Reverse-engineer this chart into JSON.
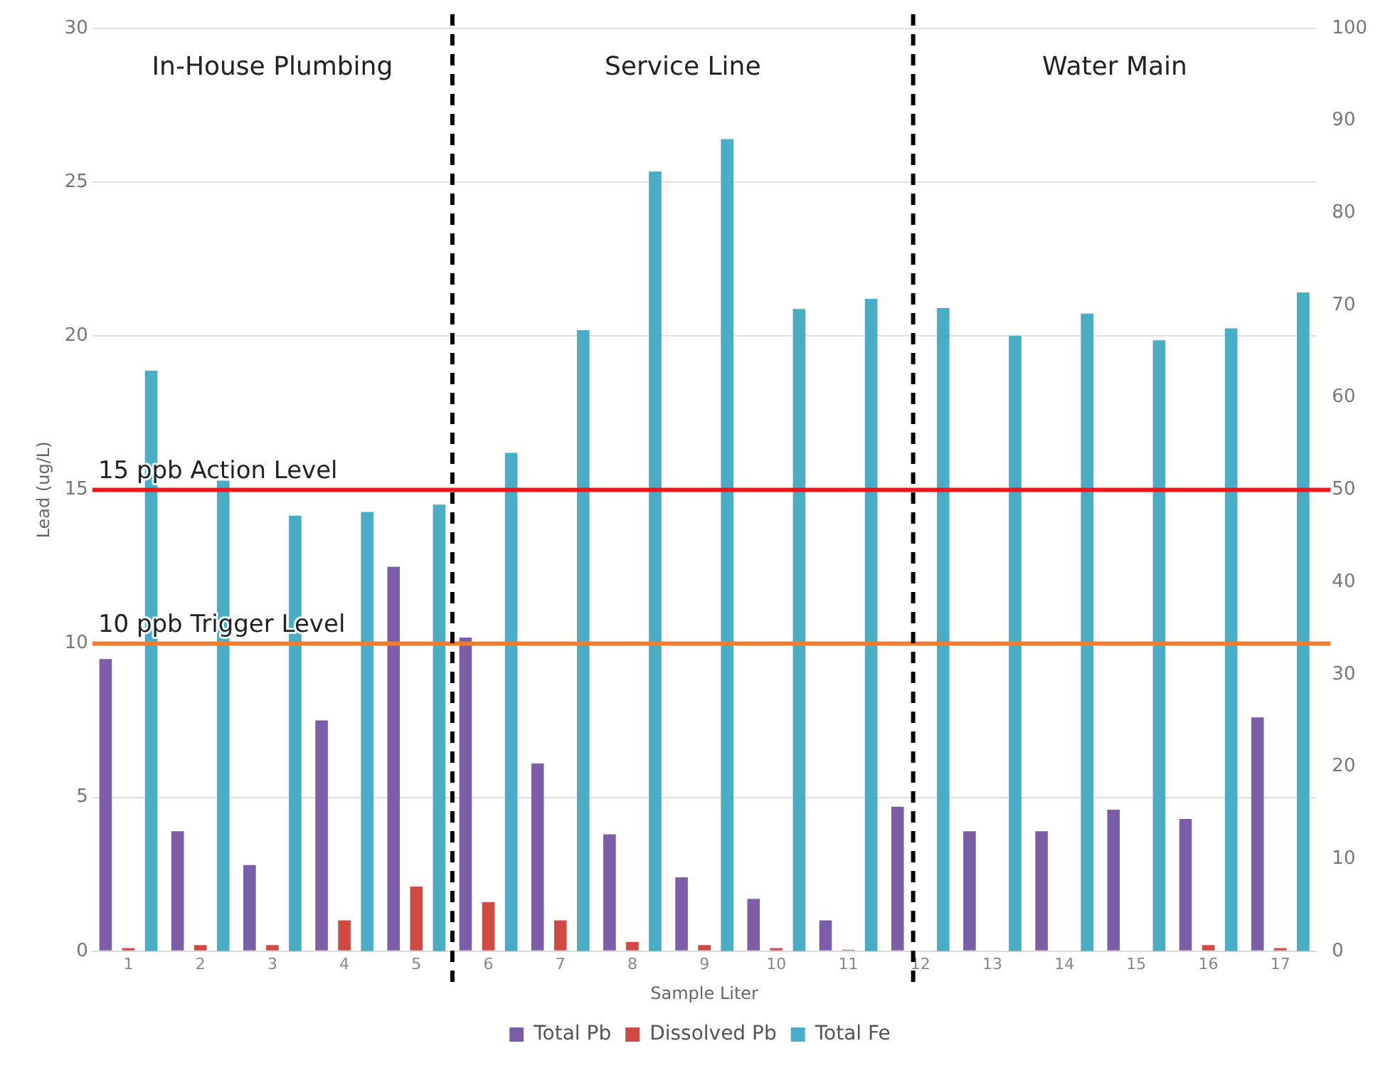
{
  "chart_data": {
    "type": "bar",
    "xlabel": "Sample Liter",
    "ylabel": "Lead (ug/L)",
    "x": [
      1,
      2,
      3,
      4,
      5,
      6,
      7,
      8,
      9,
      10,
      11,
      12,
      13,
      14,
      15,
      16,
      17
    ],
    "xlim": [
      0.5,
      17.5
    ],
    "xticks": [
      1,
      2,
      3,
      4,
      5,
      6,
      7,
      8,
      9,
      10,
      11,
      12,
      13,
      14,
      15,
      16,
      17
    ],
    "ylim": [
      0,
      30
    ],
    "yticks": [
      0,
      5,
      10,
      15,
      20,
      25,
      30
    ],
    "y2lim": [
      0,
      100
    ],
    "y2ticks": [
      0,
      10,
      20,
      30,
      40,
      50,
      60,
      70,
      80,
      90,
      100
    ],
    "series": [
      {
        "name": "Total Pb",
        "color": "#7b5ea7",
        "values": [
          9.5,
          3.9,
          2.8,
          7.5,
          12.5,
          10.2,
          6.1,
          3.8,
          2.4,
          1.7,
          1.0,
          4.7,
          3.9,
          3.9,
          4.6,
          4.3,
          7.6
        ]
      },
      {
        "name": "Dissolved Pb",
        "color": "#d04a43",
        "values": [
          0.1,
          0.2,
          0.2,
          1.0,
          2.1,
          1.6,
          1.0,
          0.3,
          0.2,
          0.1,
          0.05,
          0,
          0,
          0,
          0,
          0.2,
          0.1
        ]
      },
      {
        "name": "Total Fe",
        "color": "#4bacc6",
        "axis": "y2",
        "values": [
          62.9,
          51,
          47.2,
          47.6,
          48.4,
          54,
          67.3,
          84.5,
          88,
          69.6,
          70.7,
          69.7,
          66.7,
          69.1,
          66.2,
          67.5,
          71.4
        ]
      }
    ],
    "ref_lines": [
      {
        "axis": "y",
        "value": 15,
        "label": "15 ppb Action Level",
        "color": "#e8191b"
      },
      {
        "axis": "y",
        "value": 10,
        "label": "10 ppb Trigger Level",
        "color": "#ed7d31"
      },
      {
        "axis": "x",
        "value": 5.5,
        "color": "#000000",
        "line_style": "dashed"
      },
      {
        "axis": "x",
        "value": 11.9,
        "color": "#000000",
        "line_style": "dashed"
      }
    ],
    "annotations": [
      "In-House Plumbing",
      "Service Line",
      "Water Main"
    ],
    "grid": "y",
    "legend": "bottom"
  }
}
